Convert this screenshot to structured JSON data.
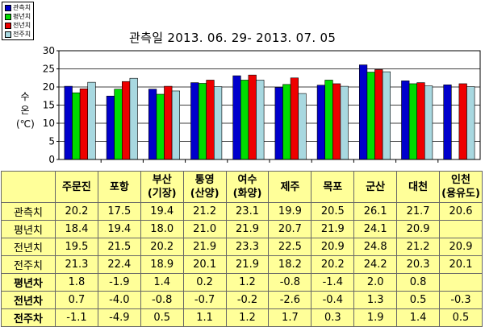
{
  "chart_data": {
    "type": "bar",
    "title": "관측일 2013. 06. 29-  2013. 07. 05",
    "ylabel_lines": [
      "수",
      "온",
      "(℃)"
    ],
    "ylim": [
      0,
      30
    ],
    "yticks": [
      0,
      5,
      10,
      15,
      20,
      25,
      30
    ],
    "grid": true,
    "legend_position": "top-left",
    "categories": [
      "주문진",
      "포항",
      "부산",
      "통영",
      "여수",
      "제주",
      "목포",
      "군산",
      "대천",
      "인천"
    ],
    "series": [
      {
        "name": "관측치",
        "color": "#0000cc",
        "values": [
          20.2,
          17.5,
          19.4,
          21.2,
          23.1,
          19.9,
          20.5,
          26.1,
          21.7,
          20.6
        ]
      },
      {
        "name": "평년치",
        "color": "#00dd00",
        "values": [
          18.4,
          19.4,
          18.0,
          21.0,
          21.9,
          20.7,
          21.9,
          24.1,
          20.9,
          null
        ]
      },
      {
        "name": "전년치",
        "color": "#ee0000",
        "values": [
          19.5,
          21.5,
          20.2,
          21.9,
          23.3,
          22.5,
          20.9,
          24.8,
          21.2,
          20.9
        ]
      },
      {
        "name": "전주치",
        "color": "#a8d8e0",
        "values": [
          21.3,
          22.4,
          18.9,
          20.1,
          21.9,
          18.2,
          20.2,
          24.2,
          20.3,
          20.1
        ]
      }
    ]
  },
  "table": {
    "headers": [
      [
        "주문진"
      ],
      [
        "포항"
      ],
      [
        "부산",
        "(기장)"
      ],
      [
        "통영",
        "(산양)"
      ],
      [
        "여수",
        "(화양)"
      ],
      [
        "제주"
      ],
      [
        "목포"
      ],
      [
        "군산"
      ],
      [
        "대천"
      ],
      [
        "인천",
        "(용유도)"
      ]
    ],
    "rows": [
      {
        "label": "관측치",
        "bold": false,
        "values": [
          "20.2",
          "17.5",
          "19.4",
          "21.2",
          "23.1",
          "19.9",
          "20.5",
          "26.1",
          "21.7",
          "20.6"
        ]
      },
      {
        "label": "평년치",
        "bold": false,
        "values": [
          "18.4",
          "19.4",
          "18.0",
          "21.0",
          "21.9",
          "20.7",
          "21.9",
          "24.1",
          "20.9",
          ""
        ]
      },
      {
        "label": "전년치",
        "bold": false,
        "values": [
          "19.5",
          "21.5",
          "20.2",
          "21.9",
          "23.3",
          "22.5",
          "20.9",
          "24.8",
          "21.2",
          "20.9"
        ]
      },
      {
        "label": "전주치",
        "bold": false,
        "values": [
          "21.3",
          "22.4",
          "18.9",
          "20.1",
          "21.9",
          "18.2",
          "20.2",
          "24.2",
          "20.3",
          "20.1"
        ]
      },
      {
        "label": "평년차",
        "bold": true,
        "values": [
          "1.8",
          "-1.9",
          "1.4",
          "0.2",
          "1.2",
          "-0.8",
          "-1.4",
          "2.0",
          "0.8",
          ""
        ]
      },
      {
        "label": "전년차",
        "bold": true,
        "values": [
          "0.7",
          "-4.0",
          "-0.8",
          "-0.7",
          "-0.2",
          "-2.6",
          "-0.4",
          "1.3",
          "0.5",
          "-0.3"
        ]
      },
      {
        "label": "전주차",
        "bold": true,
        "values": [
          "-1.1",
          "-4.9",
          "0.5",
          "1.1",
          "1.2",
          "1.7",
          "0.3",
          "1.9",
          "1.4",
          "0.5"
        ]
      }
    ]
  }
}
